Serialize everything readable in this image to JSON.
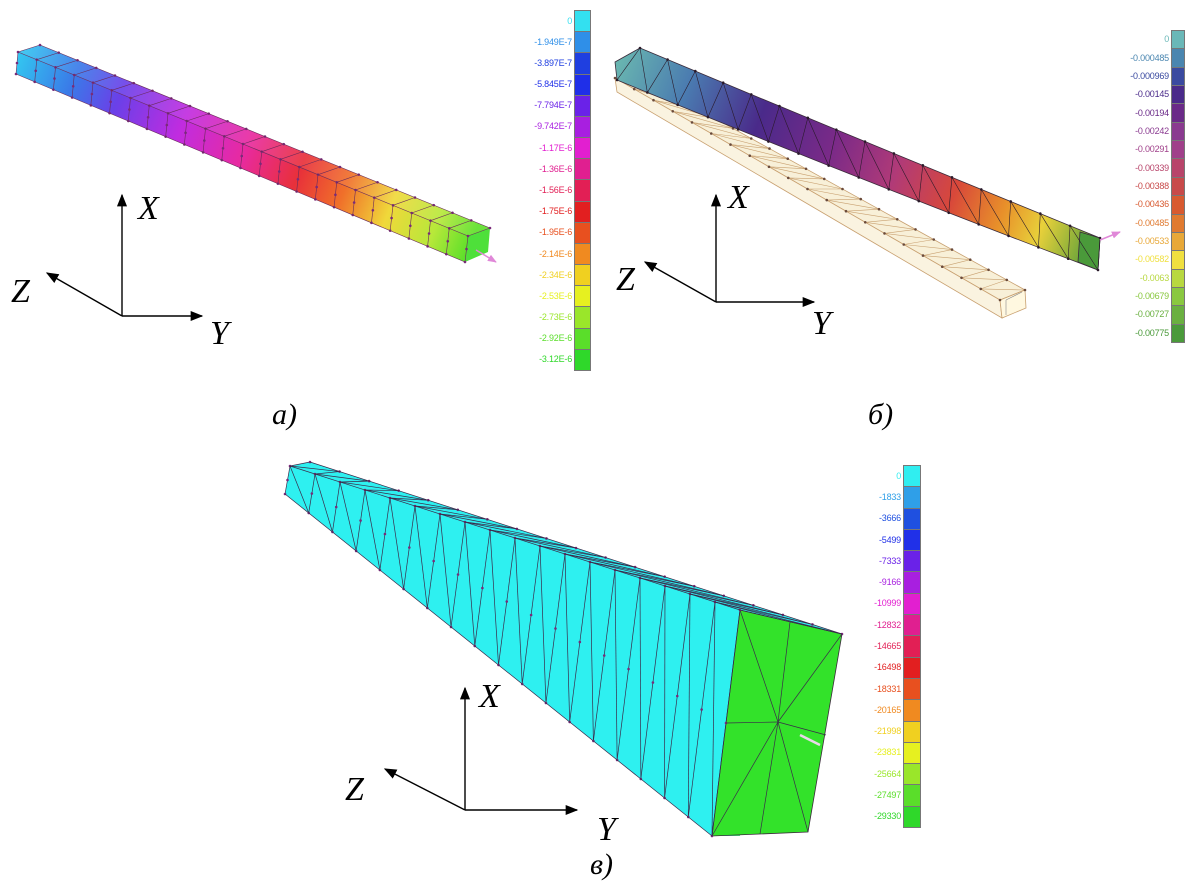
{
  "panels": [
    {
      "id": "a",
      "caption": "а)",
      "axes": {
        "x": "X",
        "y": "Y",
        "z": "Z"
      },
      "legend": {
        "labels": [
          "0",
          "-1.949E-7",
          "-3.897E-7",
          "-5.845E-7",
          "-7.794E-7",
          "-9.742E-7",
          "-1.17E-6",
          "-1.36E-6",
          "-1.56E-6",
          "-1.75E-6",
          "-1.95E-6",
          "-2.14E-6",
          "-2.34E-6",
          "-2.53E-6",
          "-2.73E-6",
          "-2.92E-6",
          "-3.12E-6"
        ],
        "colors": [
          "#33e0f0",
          "#2f8fe8",
          "#1f3fe0",
          "#1f2fe8",
          "#6a22e8",
          "#a81fe0",
          "#e21fd0",
          "#e01f90",
          "#e21f55",
          "#e21f20",
          "#e8501f",
          "#f08a20",
          "#f0d020",
          "#e6f020",
          "#9ae62a",
          "#5ade2a",
          "#2fd82a"
        ]
      }
    },
    {
      "id": "b",
      "caption": "б)",
      "axes": {
        "x": "X",
        "y": "Y",
        "z": "Z"
      },
      "legend": {
        "labels": [
          "0",
          "-0.000485",
          "-0.000969",
          "-0.00145",
          "-0.00194",
          "-0.00242",
          "-0.00291",
          "-0.00339",
          "-0.00388",
          "-0.00436",
          "-0.00485",
          "-0.00533",
          "-0.00582",
          "-0.0063",
          "-0.00679",
          "-0.00727",
          "-0.00775"
        ],
        "colors": [
          "#6ab8b8",
          "#4a86b0",
          "#3a4aa0",
          "#4a2a8a",
          "#6a2a88",
          "#8a3a90",
          "#a0408a",
          "#b8446a",
          "#c84a4a",
          "#d85a30",
          "#e07a30",
          "#e8a838",
          "#f0e040",
          "#b8d840",
          "#8ac840",
          "#6ab040",
          "#4a9a3a"
        ]
      }
    },
    {
      "id": "c",
      "caption": "в)",
      "axes": {
        "x": "X",
        "y": "Y",
        "z": "Z"
      },
      "legend": {
        "labels": [
          "0",
          "-1833",
          "-3666",
          "-5499",
          "-7333",
          "-9166",
          "-10999",
          "-12832",
          "-14665",
          "-16498",
          "-18331",
          "-20165",
          "-21998",
          "-23831",
          "-25664",
          "-27497",
          "-29330"
        ],
        "colors": [
          "#30eef0",
          "#2f9fe8",
          "#1f50e0",
          "#2030e8",
          "#6a22e8",
          "#a81fe0",
          "#e21fd0",
          "#e01f90",
          "#e21f55",
          "#e21f20",
          "#e8501f",
          "#f08a20",
          "#f0d020",
          "#e6f020",
          "#9ae62a",
          "#5ade2a",
          "#2fd82a"
        ]
      }
    }
  ],
  "colors": {
    "mesh_edge": "#6a2a5a",
    "node": "#7a2a7a",
    "axis": "#000000",
    "beam_fill_c": "#2ef0f0",
    "end_face_c": "#33e22a",
    "undeformed": "#f8f0d8",
    "load_arrow": "#e088d8"
  },
  "icons": {
    "axis_arrow": "arrow-icon"
  }
}
